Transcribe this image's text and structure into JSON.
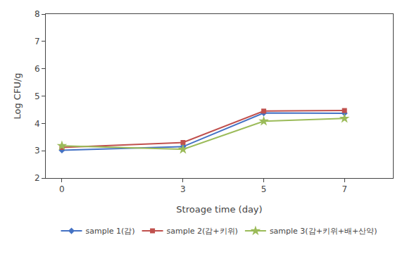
{
  "chart_data": {
    "type": "line",
    "x": [
      0,
      3,
      5,
      7
    ],
    "series": [
      {
        "name": "sample 1(감)",
        "color": "#4472c4",
        "marker": "diamond",
        "values": [
          3.02,
          3.15,
          4.38,
          4.37
        ]
      },
      {
        "name": "sample 2(감+키위)",
        "color": "#c0504d",
        "marker": "square",
        "values": [
          3.12,
          3.3,
          4.45,
          4.47
        ]
      },
      {
        "name": "sample 3(감+키위+배+산약)",
        "color": "#9bbb59",
        "marker": "star",
        "values": [
          3.18,
          3.05,
          4.08,
          4.18
        ]
      }
    ],
    "xlabel": "Stroage time (day)",
    "ylabel": "Log CFU/g",
    "xlim": [
      -0.4,
      8.2
    ],
    "ylim": [
      2,
      8
    ],
    "xticks": [
      0,
      3,
      5,
      7
    ],
    "yticks": [
      2,
      3,
      4,
      5,
      6,
      7,
      8
    ],
    "grid": false,
    "legend": "bottom"
  }
}
